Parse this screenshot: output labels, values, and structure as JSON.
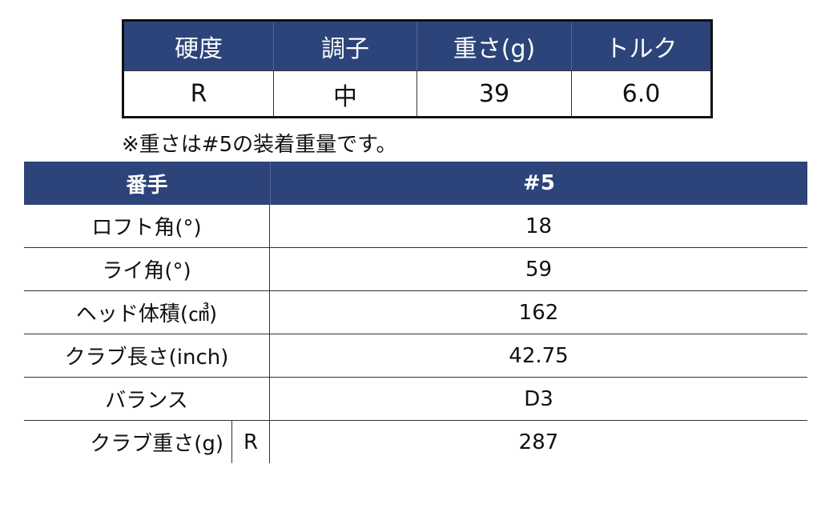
{
  "shaft_table": {
    "headers": [
      "硬度",
      "調子",
      "重さ(g)",
      "トルク"
    ],
    "values": [
      "R",
      "中",
      "39",
      "6.0"
    ]
  },
  "note": "※重さは#5の装着重量です。",
  "spec_table": {
    "header_label": "番手",
    "header_value": "#5",
    "rows": [
      {
        "label": "ロフト角(°)",
        "value": "18"
      },
      {
        "label": "ライ角(°)",
        "value": "59"
      },
      {
        "label": "ヘッド体積(㎤)",
        "value": "162"
      },
      {
        "label": "クラブ長さ(inch)",
        "value": "42.75"
      },
      {
        "label": "バランス",
        "value": "D3"
      },
      {
        "label": "クラブ重さ(g)",
        "sub": "R",
        "value": "287"
      }
    ]
  },
  "colors": {
    "header_bg": "#2c4479",
    "header_text": "#ffffff"
  }
}
